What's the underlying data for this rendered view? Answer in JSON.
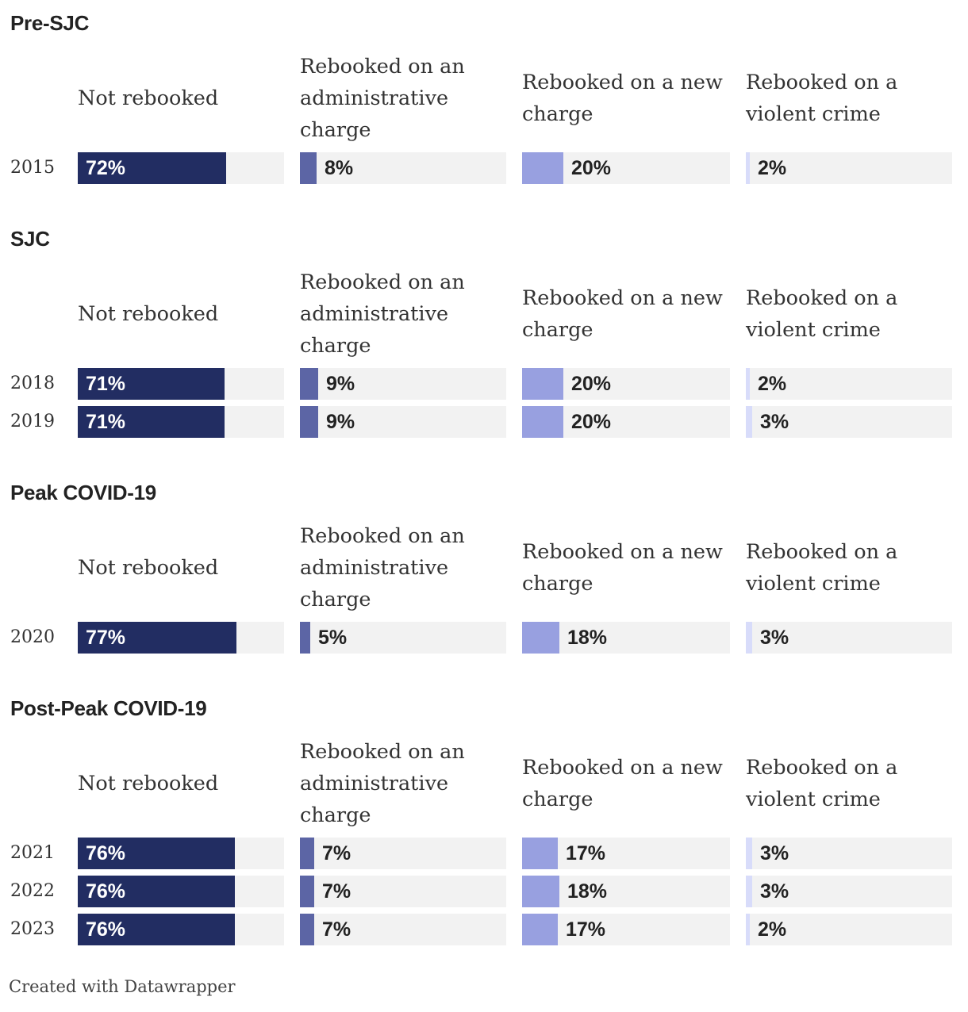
{
  "chart_data": {
    "type": "bar",
    "columns": [
      "Not rebooked",
      "Rebooked on an administrative charge",
      "Rebooked on a new charge",
      "Rebooked on a violent crime"
    ],
    "column_colors": [
      "#222d62",
      "#5c65a5",
      "#98a0e0",
      "#d8dcfa"
    ],
    "value_scale_max": 100,
    "unit": "%",
    "groups": [
      {
        "title": "Pre-SJC",
        "rows": [
          {
            "year": "2015",
            "values": [
              72,
              8,
              20,
              2
            ]
          }
        ]
      },
      {
        "title": "SJC",
        "rows": [
          {
            "year": "2018",
            "values": [
              71,
              9,
              20,
              2
            ]
          },
          {
            "year": "2019",
            "values": [
              71,
              9,
              20,
              3
            ]
          }
        ]
      },
      {
        "title": "Peak COVID-19",
        "rows": [
          {
            "year": "2020",
            "values": [
              77,
              5,
              18,
              3
            ]
          }
        ]
      },
      {
        "title": "Post-Peak COVID-19",
        "rows": [
          {
            "year": "2021",
            "values": [
              76,
              7,
              17,
              3
            ]
          },
          {
            "year": "2022",
            "values": [
              76,
              7,
              18,
              3
            ]
          },
          {
            "year": "2023",
            "values": [
              76,
              7,
              17,
              2
            ]
          }
        ]
      }
    ]
  },
  "footer": {
    "credit": "Created with Datawrapper"
  }
}
